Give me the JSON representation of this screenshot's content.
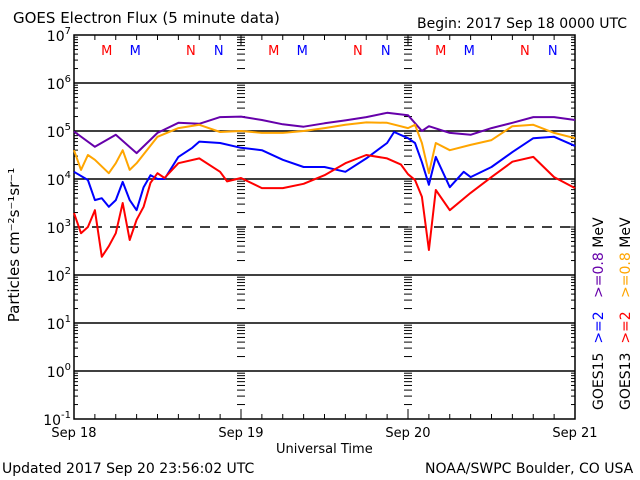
{
  "chart_data": {
    "type": "line",
    "title": "GOES Electron Flux (5 minute data)",
    "begin_label": "Begin: 2017 Sep 18 0000 UTC",
    "xlabel": "Universal Time",
    "ylabel": "Particles cm⁻²s⁻¹sr⁻¹",
    "yscale": "log",
    "ylim": [
      0.1,
      10000000
    ],
    "y_tick_labels": [
      {
        "base": "10",
        "exp": "7",
        "value": 10000000
      },
      {
        "base": "10",
        "exp": "6",
        "value": 1000000
      },
      {
        "base": "10",
        "exp": "5",
        "value": 100000
      },
      {
        "base": "10",
        "exp": "4",
        "value": 10000
      },
      {
        "base": "10",
        "exp": "3",
        "value": 1000
      },
      {
        "base": "10",
        "exp": "2",
        "value": 100
      },
      {
        "base": "10",
        "exp": "1",
        "value": 10
      },
      {
        "base": "10",
        "exp": "0",
        "value": 1
      },
      {
        "base": "10",
        "exp": "-1",
        "value": 0.1
      }
    ],
    "x_unit": "hours since 2017 Sep 18 0000 UTC",
    "xlim": [
      0,
      72
    ],
    "x_tick_labels": [
      {
        "label": "Sep 18",
        "hour": 0
      },
      {
        "label": "Sep 19",
        "hour": 24
      },
      {
        "label": "Sep 20",
        "hour": 48
      },
      {
        "label": "Sep 21",
        "hour": 72
      }
    ],
    "threshold_dashed_value": 1000,
    "markers": [
      {
        "label": "M",
        "color": "#ff0000",
        "hours": [
          4.7,
          28.7,
          52.7
        ]
      },
      {
        "label": "M",
        "color": "#0000ff",
        "hours": [
          8.8,
          32.8,
          56.8
        ]
      },
      {
        "label": "N",
        "color": "#ff0000",
        "hours": [
          16.8,
          40.8,
          64.8
        ]
      },
      {
        "label": "N",
        "color": "#0000ff",
        "hours": [
          20.8,
          44.8,
          68.8
        ]
      }
    ],
    "series": [
      {
        "name": "GOES15 >=0.8 MeV",
        "color": "#6600aa",
        "hours": [
          0,
          3,
          6,
          9,
          12,
          15,
          18,
          21,
          24,
          27,
          30,
          33,
          36,
          39,
          42,
          45,
          48,
          50,
          51,
          54,
          57,
          60,
          63,
          66,
          69,
          72
        ],
        "log10_values": [
          4.99,
          4.67,
          4.92,
          4.54,
          4.96,
          5.17,
          5.15,
          5.29,
          5.3,
          5.23,
          5.14,
          5.09,
          5.16,
          5.22,
          5.29,
          5.38,
          5.33,
          5.0,
          5.1,
          4.96,
          4.92,
          5.06,
          5.17,
          5.29,
          5.29,
          5.23
        ]
      },
      {
        "name": "GOES13 >=0.8 MeV",
        "color": "#ffa500",
        "hours": [
          0,
          1,
          2,
          3,
          5,
          6,
          7,
          8,
          9,
          12,
          15,
          18,
          21,
          24,
          27,
          30,
          33,
          36,
          39,
          42,
          45,
          48,
          49,
          50,
          51,
          52,
          54,
          57,
          60,
          63,
          66,
          69,
          72
        ],
        "log10_values": [
          4.6,
          4.19,
          4.5,
          4.4,
          4.12,
          4.33,
          4.6,
          4.19,
          4.33,
          4.88,
          5.06,
          5.13,
          4.98,
          5.0,
          4.96,
          4.96,
          5.0,
          5.06,
          5.13,
          5.18,
          5.17,
          5.06,
          5.13,
          4.75,
          4.12,
          4.75,
          4.6,
          4.71,
          4.81,
          5.1,
          5.13,
          4.96,
          4.85
        ]
      },
      {
        "name": "GOES15 >=2 MeV",
        "color": "#0000ff",
        "hours": [
          0,
          2,
          3,
          4,
          5,
          6,
          7,
          8,
          9,
          10,
          11,
          12,
          13,
          15,
          17,
          18,
          21,
          24,
          27,
          30,
          33,
          36,
          39,
          42,
          45,
          46,
          48,
          49,
          50,
          51,
          52,
          54,
          56,
          57,
          60,
          63,
          66,
          69,
          72
        ],
        "log10_values": [
          4.15,
          3.98,
          3.56,
          3.6,
          3.42,
          3.56,
          3.94,
          3.56,
          3.35,
          3.83,
          4.08,
          4.0,
          4.0,
          4.46,
          4.65,
          4.78,
          4.75,
          4.65,
          4.6,
          4.4,
          4.25,
          4.25,
          4.15,
          4.43,
          4.75,
          4.98,
          4.85,
          4.75,
          4.35,
          3.88,
          4.46,
          3.83,
          4.15,
          4.04,
          4.25,
          4.56,
          4.85,
          4.88,
          4.69
        ]
      },
      {
        "name": "GOES13 >=2 MeV",
        "color": "#ff0000",
        "hours": [
          0,
          1,
          2,
          3,
          4,
          5,
          6,
          7,
          8,
          9,
          10,
          11,
          12,
          13,
          15,
          18,
          21,
          22,
          24,
          27,
          30,
          33,
          36,
          39,
          42,
          45,
          47,
          48,
          49,
          50,
          51,
          52,
          54,
          57,
          60,
          63,
          66,
          69,
          72
        ],
        "log10_values": [
          3.29,
          2.87,
          3.0,
          3.35,
          2.38,
          2.6,
          2.87,
          3.5,
          2.73,
          3.15,
          3.42,
          3.92,
          4.12,
          4.02,
          4.33,
          4.43,
          4.15,
          3.95,
          4.02,
          3.81,
          3.81,
          3.9,
          4.08,
          4.33,
          4.5,
          4.43,
          4.3,
          4.1,
          3.98,
          3.63,
          2.52,
          3.77,
          3.35,
          3.71,
          4.04,
          4.36,
          4.46,
          4.04,
          3.81
        ]
      }
    ],
    "legend": {
      "placement": "right",
      "rows": [
        {
          "sat": "GOES15",
          "items": [
            {
              "text": ">=2",
              "color": "#0000ff"
            },
            {
              "text": ">=0.8",
              "color": "#6600aa"
            }
          ],
          "unit": "MeV"
        },
        {
          "sat": "GOES13",
          "items": [
            {
              "text": ">=2",
              "color": "#ff0000"
            },
            {
              "text": ">=0.8",
              "color": "#ffa500"
            }
          ],
          "unit": "MeV"
        }
      ]
    }
  },
  "footer": {
    "updated": "Updated 2017 Sep 20 23:56:02 UTC",
    "source": "NOAA/SWPC Boulder, CO USA"
  }
}
